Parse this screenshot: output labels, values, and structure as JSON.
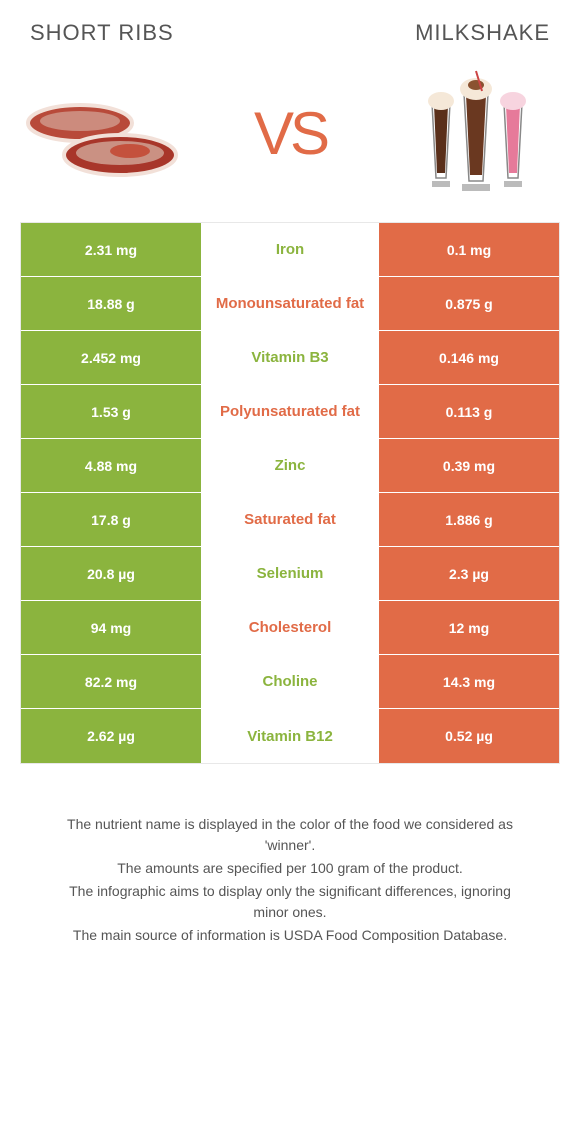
{
  "colors": {
    "left": "#8bb43e",
    "right": "#e16b47",
    "mid_bg": "#ffffff",
    "mid_text_green": "#8bb43e",
    "mid_text_orange": "#e16b47",
    "title_text": "#555555"
  },
  "food_left": {
    "title": "Short ribs"
  },
  "food_right": {
    "title": "Milkshake"
  },
  "vs_label": "VS",
  "rows": [
    {
      "left": "2.31 mg",
      "mid": "Iron",
      "right": "0.1 mg",
      "winner": "left"
    },
    {
      "left": "18.88 g",
      "mid": "Monounsaturated fat",
      "right": "0.875 g",
      "winner": "right"
    },
    {
      "left": "2.452 mg",
      "mid": "Vitamin B3",
      "right": "0.146 mg",
      "winner": "left"
    },
    {
      "left": "1.53 g",
      "mid": "Polyunsaturated fat",
      "right": "0.113 g",
      "winner": "right"
    },
    {
      "left": "4.88 mg",
      "mid": "Zinc",
      "right": "0.39 mg",
      "winner": "left"
    },
    {
      "left": "17.8 g",
      "mid": "Saturated fat",
      "right": "1.886 g",
      "winner": "right"
    },
    {
      "left": "20.8 µg",
      "mid": "Selenium",
      "right": "2.3 µg",
      "winner": "left"
    },
    {
      "left": "94 mg",
      "mid": "Cholesterol",
      "right": "12 mg",
      "winner": "right"
    },
    {
      "left": "82.2 mg",
      "mid": "Choline",
      "right": "14.3 mg",
      "winner": "left"
    },
    {
      "left": "2.62 µg",
      "mid": "Vitamin B12",
      "right": "0.52 µg",
      "winner": "left"
    }
  ],
  "notes": [
    "The nutrient name is displayed in the color of the food we considered as 'winner'.",
    "The amounts are specified per 100 gram of the product.",
    "The infographic aims to display only the significant differences, ignoring minor ones.",
    "The main source of information is USDA Food Composition Database."
  ]
}
